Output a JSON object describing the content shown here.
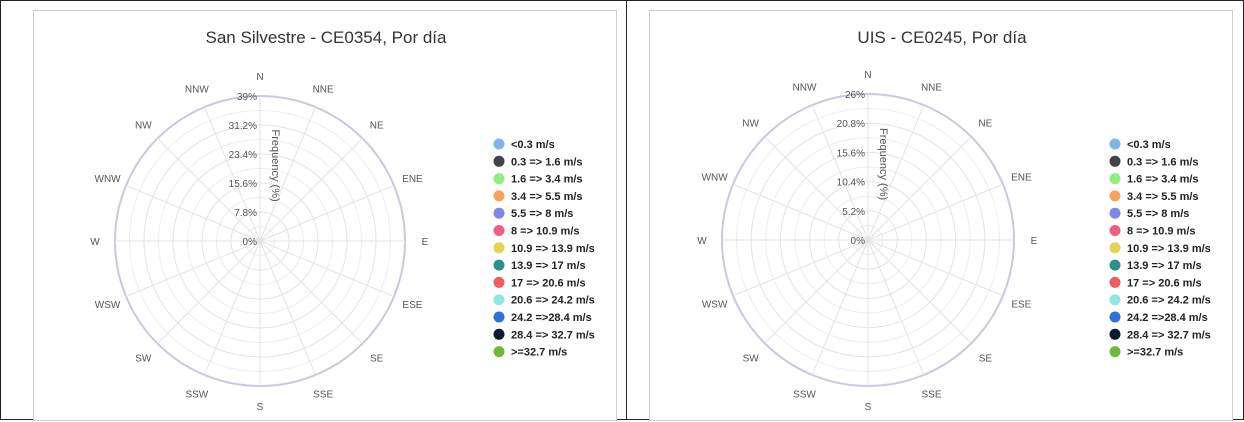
{
  "chart_data": [
    {
      "type": "windrose",
      "title": "San Silvestre - CE0354, Por día",
      "directions": [
        "N",
        "NNE",
        "NE",
        "ENE",
        "E",
        "ESE",
        "SE",
        "SSE",
        "S",
        "SSW",
        "SW",
        "WSW",
        "W",
        "WNW",
        "NW",
        "NNW"
      ],
      "radial_ticks": [
        "0%",
        "7.8%",
        "15.6%",
        "23.4%",
        "31.2%",
        "39%"
      ],
      "rmax": 39,
      "radial_axis_label": "Frequency (%)",
      "legend": [
        "<0.3 m/s",
        "0.3 => 1.6 m/s",
        "1.6 => 3.4 m/s",
        "3.4 => 5.5 m/s",
        "5.5 => 8 m/s",
        "8 => 10.9 m/s",
        "10.9 => 13.9 m/s",
        "13.9 => 17 m/s",
        "17 => 20.6 m/s",
        "20.6 => 24.2 m/s",
        "24.2 =>28.4 m/s",
        "28.4 => 32.7 m/s",
        ">=32.7 m/s"
      ],
      "legend_colors": [
        "#7cb5ec",
        "#434348",
        "#90ed7d",
        "#f7a35c",
        "#8085e9",
        "#f15c80",
        "#e4d354",
        "#2b908f",
        "#f45b5b",
        "#91e8e1",
        "#2f6fd6",
        "#0b1a33",
        "#6fb83a"
      ],
      "series": [
        {
          "name": "0.3 => 1.6 m/s",
          "values": [
            0,
            0,
            0,
            0,
            0,
            0,
            0,
            0,
            0,
            0,
            0,
            0,
            0,
            0,
            0,
            0
          ]
        }
      ],
      "frequencies": [
        0,
        0,
        0,
        0,
        0,
        0,
        0,
        0,
        0,
        0,
        0,
        0,
        0,
        0,
        0,
        0
      ]
    },
    {
      "type": "windrose",
      "title": "UIS - CE0245, Por día",
      "directions": [
        "N",
        "NNE",
        "NE",
        "ENE",
        "E",
        "ESE",
        "SE",
        "SSE",
        "S",
        "SSW",
        "SW",
        "WSW",
        "W",
        "WNW",
        "NW",
        "NNW"
      ],
      "radial_ticks": [
        "0%",
        "5.2%",
        "10.4%",
        "15.6%",
        "20.8%",
        "26%"
      ],
      "rmax": 26,
      "radial_axis_label": "Frequency (%)",
      "legend": [
        "<0.3 m/s",
        "0.3 => 1.6 m/s",
        "1.6 => 3.4 m/s",
        "3.4 => 5.5 m/s",
        "5.5 => 8 m/s",
        "8 => 10.9 m/s",
        "10.9 => 13.9 m/s",
        "13.9 => 17 m/s",
        "17 => 20.6 m/s",
        "20.6 => 24.2 m/s",
        "24.2 =>28.4 m/s",
        "28.4 => 32.7 m/s",
        ">=32.7 m/s"
      ],
      "legend_colors": [
        "#7cb5ec",
        "#434348",
        "#90ed7d",
        "#f7a35c",
        "#8085e9",
        "#f15c80",
        "#e4d354",
        "#2b908f",
        "#f45b5b",
        "#91e8e1",
        "#2f6fd6",
        "#0b1a33",
        "#6fb83a"
      ],
      "series": [
        {
          "name": "0.3 => 1.6 m/s",
          "values": [
            0,
            0,
            0,
            0,
            0,
            0,
            0,
            0,
            0,
            0,
            0,
            0,
            0,
            0,
            0,
            0
          ]
        }
      ],
      "frequencies": [
        0,
        0,
        0,
        0,
        0,
        0,
        0,
        0,
        0,
        0,
        0,
        0,
        0,
        0,
        0,
        0
      ]
    }
  ]
}
